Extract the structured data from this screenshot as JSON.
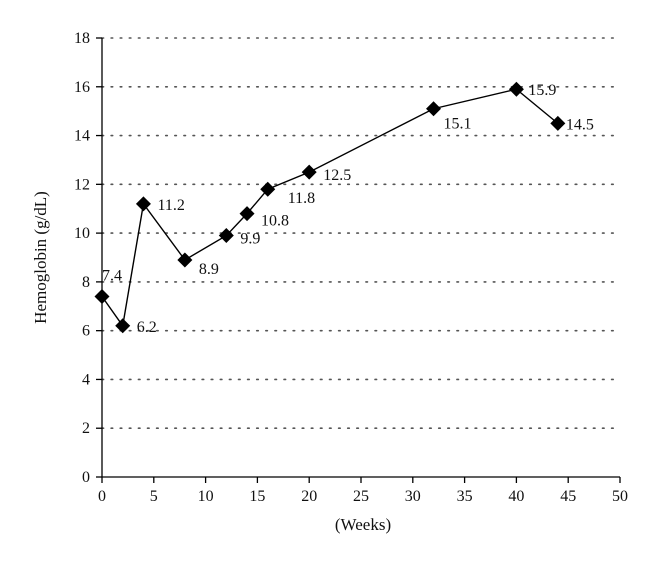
{
  "chart_data": {
    "type": "line",
    "xlabel": "(Weeks)",
    "ylabel": "Hemoglobin (g/dL)",
    "xlim": [
      0,
      50
    ],
    "ylim": [
      0,
      18
    ],
    "x_ticks": [
      0,
      5,
      10,
      15,
      20,
      25,
      30,
      35,
      40,
      45,
      50
    ],
    "y_ticks": [
      0,
      2,
      4,
      6,
      8,
      10,
      12,
      14,
      16,
      18
    ],
    "grid": "horizontal-dotted",
    "marker": "diamond",
    "series": [
      {
        "x": [
          0,
          2,
          4,
          8,
          12,
          14,
          16,
          20,
          32,
          40,
          44
        ],
        "values": [
          7.4,
          6.2,
          11.2,
          8.9,
          9.9,
          10.8,
          11.8,
          12.5,
          15.1,
          15.9,
          14.5
        ],
        "labels": [
          "7.4",
          "6.2",
          "11.2",
          "8.9",
          "9.9",
          "10.8",
          "11.8",
          "12.5",
          "15.1",
          "15.9",
          "14.5"
        ]
      }
    ],
    "colors": {
      "line": "#000000",
      "grid": "#555555",
      "axis": "#000000"
    }
  }
}
